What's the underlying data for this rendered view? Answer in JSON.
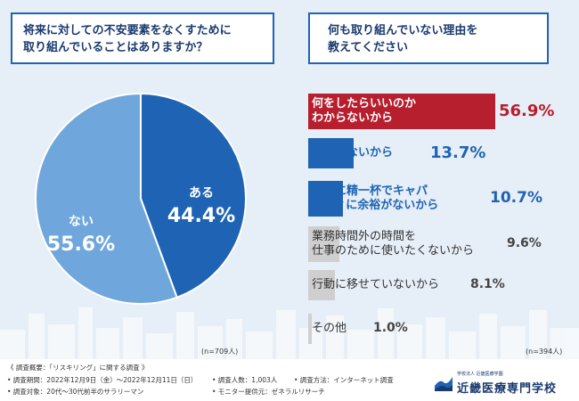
{
  "q1": {
    "line1": "将来に対しての不安要素をなくすために",
    "line2": "取り組んでいることはありますか？"
  },
  "q2": {
    "line1": "何も取り組んでいない理由を",
    "line2": "教えてください"
  },
  "pie": {
    "n": "(n=709人)"
  },
  "bars": {
    "n": "(n=394人)"
  },
  "colors": {
    "blue": "#1f64b4",
    "light_blue": "#6fa7dc",
    "red": "#b71e2e",
    "gray": "#cfcfcf",
    "navy": "#1a3a6e"
  },
  "chart_data": [
    {
      "type": "pie",
      "title": "将来に対しての不安要素をなくすために取り組んでいることはありますか？",
      "slices": [
        {
          "label": "ある",
          "value": 44.4,
          "display": "44.4%"
        },
        {
          "label": "ない",
          "value": 55.6,
          "display": "55.6%"
        }
      ]
    },
    {
      "type": "bar",
      "title": "何も取り組んでいない理由を教えてください",
      "categories": [
        {
          "line1": "何をしたらいいのか",
          "line2": "わからないから"
        },
        {
          "line1": "時間がないから",
          "line2": ""
        },
        {
          "line1": "仕事に精一杯でキャパ",
          "line2": "シティに余裕がないから"
        },
        {
          "line1": "業務時間外の時間を",
          "line2": "仕事のために使いたくないから"
        },
        {
          "line1": "行動に移せていないから",
          "line2": ""
        },
        {
          "line1": "その他",
          "line2": ""
        }
      ],
      "values": [
        56.9,
        13.7,
        10.7,
        9.6,
        8.1,
        1.0
      ],
      "labels": [
        "56.9%",
        "13.7%",
        "10.7%",
        "9.6%",
        "8.1%",
        "1.0%"
      ]
    }
  ],
  "footer": {
    "title": "《 調査概要：「リスキリング」に関する調査 》",
    "period": "• 調査期間：2022年12月9日（金）〜2022年12月11日（日）",
    "target": "• 調査対象：20代〜30代前半のサラリーマン",
    "count": "• 調査人数：1,003人",
    "method": "• 調査方法：インターネット調査",
    "provider": "• モニター提供元：ゼネラルリサーチ"
  },
  "logo": {
    "sub": "学校法人 近畿医療学園",
    "name": "近畿医療専門学校"
  }
}
